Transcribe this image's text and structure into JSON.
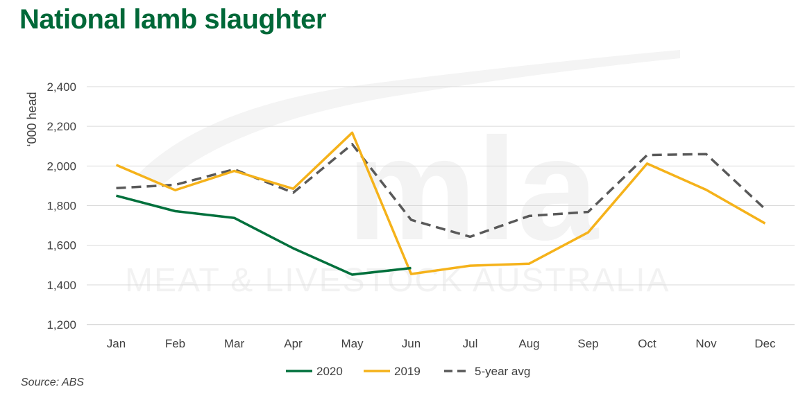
{
  "title": "National lamb slaughter",
  "source": "Source: ABS",
  "watermark": {
    "logo": "mla",
    "text": "MEAT & LIVESTOCK AUSTRALIA"
  },
  "colors": {
    "title": "#006838",
    "s2020": "#00703C",
    "s2019": "#F5B21A",
    "avg": "#595959",
    "grid": "#D9D9D9"
  },
  "chart_data": {
    "type": "line",
    "title": "National lamb slaughter",
    "ylabel": "‘000 head",
    "xlabel": "",
    "categories": [
      "Jan",
      "Feb",
      "Mar",
      "Apr",
      "May",
      "Jun",
      "Jul",
      "Aug",
      "Sep",
      "Oct",
      "Nov",
      "Dec"
    ],
    "ylim": [
      1200,
      2400
    ],
    "yticks": [
      1200,
      1400,
      1600,
      1800,
      2000,
      2200,
      2400
    ],
    "ytick_labels": [
      "1,200",
      "1,400",
      "1,600",
      "1,800",
      "2,000",
      "2,200",
      "2,400"
    ],
    "grid": true,
    "legend_position": "bottom",
    "series": [
      {
        "name": "2020",
        "style": "solid",
        "color": "#00703C",
        "values": [
          1850,
          1772,
          1738,
          1585,
          1452,
          1485,
          null,
          null,
          null,
          null,
          null,
          null
        ]
      },
      {
        "name": "2019",
        "style": "solid",
        "color": "#F5B21A",
        "values": [
          2005,
          1878,
          1975,
          1885,
          2168,
          1455,
          1497,
          1507,
          1665,
          2012,
          1880,
          1710
        ]
      },
      {
        "name": "5-year avg",
        "style": "dashed",
        "color": "#595959",
        "values": [
          1888,
          1905,
          1983,
          1865,
          2110,
          1728,
          1643,
          1748,
          1768,
          2055,
          2060,
          1783
        ]
      }
    ]
  }
}
